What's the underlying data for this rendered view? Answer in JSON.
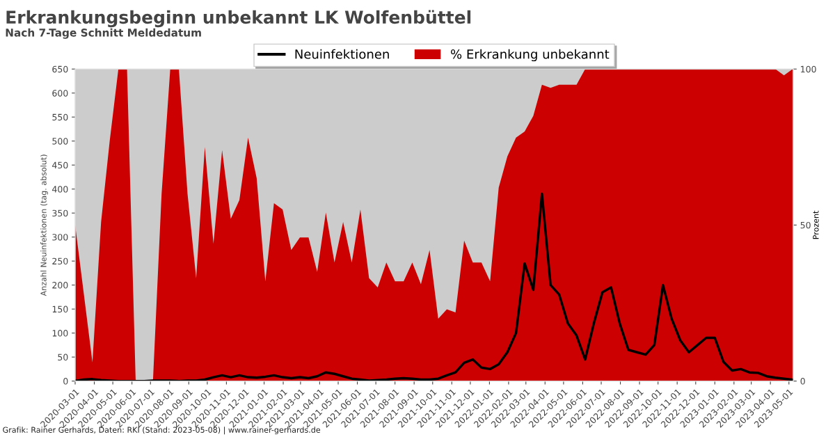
{
  "chart_data": {
    "type": "line",
    "title": "Erkrankungsbeginn unbekannt LK Wolfenbüttel",
    "subtitle": "Nach 7-Tage Schnitt Meldedatum",
    "ylabel": "Anzahl Neuinfektionen (tag. absolut)",
    "y2label": "Prozent",
    "annotations": [
      "Grafik: Rainer Gerhards, Daten: RKI (Stand: 2023-05-08) | www.rainer-gerhards.de"
    ],
    "x": [
      "2020-03-01",
      "2020-03-15",
      "2020-03-29",
      "2020-04-12",
      "2020-04-26",
      "2020-05-10",
      "2020-05-24",
      "2020-06-07",
      "2020-06-21",
      "2020-07-05",
      "2020-07-19",
      "2020-08-02",
      "2020-08-16",
      "2020-08-30",
      "2020-09-13",
      "2020-09-27",
      "2020-10-11",
      "2020-10-25",
      "2020-11-08",
      "2020-11-22",
      "2020-12-06",
      "2020-12-20",
      "2021-01-03",
      "2021-01-17",
      "2021-01-31",
      "2021-02-14",
      "2021-02-28",
      "2021-03-14",
      "2021-03-28",
      "2021-04-11",
      "2021-04-25",
      "2021-05-09",
      "2021-05-23",
      "2021-06-06",
      "2021-06-20",
      "2021-07-04",
      "2021-07-18",
      "2021-08-01",
      "2021-08-15",
      "2021-08-29",
      "2021-09-12",
      "2021-09-26",
      "2021-10-10",
      "2021-10-24",
      "2021-11-07",
      "2021-11-21",
      "2021-12-05",
      "2021-12-19",
      "2022-01-02",
      "2022-01-16",
      "2022-01-30",
      "2022-02-13",
      "2022-02-27",
      "2022-03-13",
      "2022-03-27",
      "2022-04-10",
      "2022-04-24",
      "2022-05-08",
      "2022-05-22",
      "2022-06-05",
      "2022-06-19",
      "2022-07-03",
      "2022-07-17",
      "2022-07-31",
      "2022-08-14",
      "2022-08-28",
      "2022-09-11",
      "2022-09-25",
      "2022-10-09",
      "2022-10-23",
      "2022-11-06",
      "2022-11-20",
      "2022-12-04",
      "2022-12-18",
      "2023-01-01",
      "2023-01-15",
      "2023-01-29",
      "2023-02-12",
      "2023-02-26",
      "2023-03-12",
      "2023-03-26",
      "2023-04-09",
      "2023-04-23",
      "2023-05-07"
    ],
    "series": [
      {
        "name": "% Erkrankung unbekannt",
        "type": "area",
        "axis": "y2",
        "color": "#cc0000",
        "values": [
          50,
          28,
          6,
          51,
          77,
          100,
          100,
          0,
          0,
          0,
          60,
          100,
          100,
          60,
          33,
          75,
          44,
          74,
          52,
          58,
          78,
          65,
          32,
          57,
          55,
          42,
          46,
          46,
          35,
          54,
          38,
          51,
          38,
          55,
          33,
          30,
          38,
          32,
          32,
          38,
          31,
          42,
          20,
          23,
          22,
          45,
          38,
          38,
          32,
          62,
          72,
          78,
          80,
          85,
          95,
          94,
          95,
          95,
          95,
          100,
          100,
          100,
          100,
          100,
          100,
          100,
          100,
          100,
          100,
          100,
          100,
          100,
          100,
          100,
          100,
          100,
          100,
          100,
          100,
          100,
          100,
          100,
          98,
          100
        ]
      },
      {
        "name": "Neuinfektionen",
        "color": "#000000",
        "values": [
          0,
          3,
          4,
          2,
          1,
          0,
          0,
          0,
          0,
          1,
          1,
          1,
          0,
          1,
          1,
          3,
          8,
          12,
          8,
          12,
          8,
          7,
          9,
          12,
          8,
          6,
          8,
          6,
          10,
          18,
          15,
          10,
          5,
          3,
          1,
          2,
          3,
          5,
          6,
          5,
          3,
          3,
          5,
          12,
          18,
          38,
          45,
          28,
          25,
          35,
          60,
          100,
          245,
          190,
          390,
          200,
          180,
          120,
          95,
          45,
          120,
          185,
          195,
          120,
          65,
          60,
          55,
          75,
          200,
          130,
          85,
          60,
          75,
          90,
          90,
          40,
          22,
          25,
          18,
          17,
          10,
          7,
          5,
          3
        ]
      }
    ],
    "xlim": [
      "2020-03-01",
      "2023-05-08"
    ],
    "xticks": [
      "2020-03-01",
      "2020-04-01",
      "2020-05-01",
      "2020-06-01",
      "2020-07-01",
      "2020-08-01",
      "2020-09-01",
      "2020-10-01",
      "2020-11-01",
      "2020-12-01",
      "2021-01-01",
      "2021-02-01",
      "2021-03-01",
      "2021-04-01",
      "2021-05-01",
      "2021-06-01",
      "2021-07-01",
      "2021-08-01",
      "2021-09-01",
      "2021-10-01",
      "2021-11-01",
      "2021-12-01",
      "2022-01-01",
      "2022-02-01",
      "2022-03-01",
      "2022-04-01",
      "2022-05-01",
      "2022-06-01",
      "2022-07-01",
      "2022-08-01",
      "2022-09-01",
      "2022-10-01",
      "2022-11-01",
      "2022-12-01",
      "2023-01-01",
      "2023-02-01",
      "2023-03-01",
      "2023-04-01",
      "2023-05-01"
    ],
    "ylim": [
      0,
      650
    ],
    "yticks": [
      0,
      50,
      100,
      150,
      200,
      250,
      300,
      350,
      400,
      450,
      500,
      550,
      600,
      650
    ],
    "y2lim": [
      0,
      100
    ],
    "y2ticks": [
      0,
      50,
      100
    ],
    "grid": false,
    "legend": "top",
    "line_style": "solid",
    "marker": "none"
  }
}
